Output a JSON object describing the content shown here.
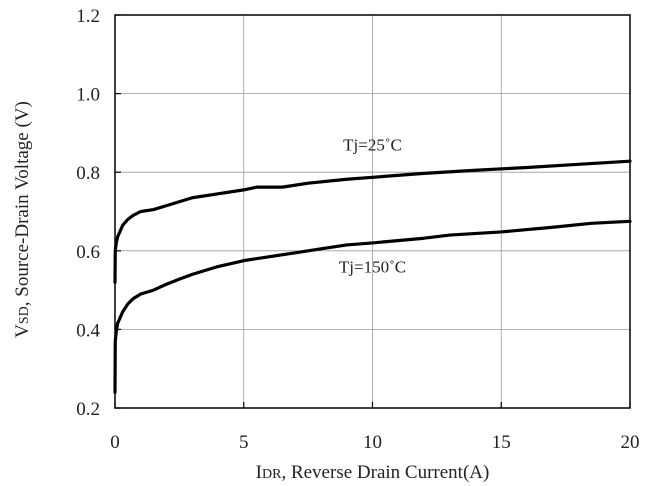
{
  "chart_data": {
    "type": "line",
    "title": "",
    "xlabel": {
      "main_prefix": "I",
      "main_subscript": "DR",
      "rest": ", Reverse Drain Current(A)"
    },
    "ylabel": {
      "main_prefix": "V",
      "main_subscript": "SD",
      "rest": ", Source-Drain Voltage (V)"
    },
    "xlim": [
      0,
      20
    ],
    "ylim": [
      0.2,
      1.2
    ],
    "x_ticks": [
      0,
      5,
      10,
      15,
      20
    ],
    "x_tick_labels": [
      "0",
      "5",
      "10",
      "15",
      "20"
    ],
    "y_ticks": [
      0.2,
      0.4,
      0.6,
      0.8,
      1.0,
      1.2
    ],
    "y_tick_labels": [
      "0.2",
      "0.4",
      "0.6",
      "0.8",
      "1.0",
      "1.2"
    ],
    "grid": true,
    "series": [
      {
        "name": "Tj=25˚C",
        "color": "#000000",
        "x": [
          0.0,
          0.01,
          0.05,
          0.1,
          0.2,
          0.3,
          0.5,
          0.7,
          1.0,
          1.5,
          2.0,
          3.0,
          4.0,
          5.0,
          5.5,
          6.5,
          7.5,
          9.0,
          10.0,
          12.0,
          14.0,
          16.0,
          18.0,
          20.0
        ],
        "values": [
          0.52,
          0.6,
          0.62,
          0.635,
          0.65,
          0.665,
          0.68,
          0.69,
          0.7,
          0.705,
          0.715,
          0.735,
          0.745,
          0.755,
          0.762,
          0.762,
          0.772,
          0.782,
          0.787,
          0.797,
          0.805,
          0.812,
          0.82,
          0.828
        ]
      },
      {
        "name": "Tj=150˚C",
        "color": "#000000",
        "x": [
          0.0,
          0.01,
          0.05,
          0.1,
          0.2,
          0.3,
          0.5,
          0.7,
          1.0,
          1.5,
          2.0,
          2.5,
          3.0,
          4.0,
          5.0,
          6.0,
          7.0,
          8.0,
          9.0,
          10.0,
          12.0,
          13.0,
          15.0,
          17.0,
          18.5,
          20.0
        ],
        "values": [
          0.24,
          0.37,
          0.395,
          0.415,
          0.43,
          0.445,
          0.465,
          0.478,
          0.49,
          0.5,
          0.515,
          0.528,
          0.54,
          0.56,
          0.575,
          0.585,
          0.595,
          0.605,
          0.615,
          0.62,
          0.632,
          0.64,
          0.648,
          0.66,
          0.67,
          0.675
        ]
      }
    ],
    "annotations": [
      {
        "text": "Tj=25˚C",
        "x": 10.0,
        "y": 0.855
      },
      {
        "text": "Tj=150˚C",
        "x": 10.0,
        "y": 0.545
      }
    ]
  }
}
